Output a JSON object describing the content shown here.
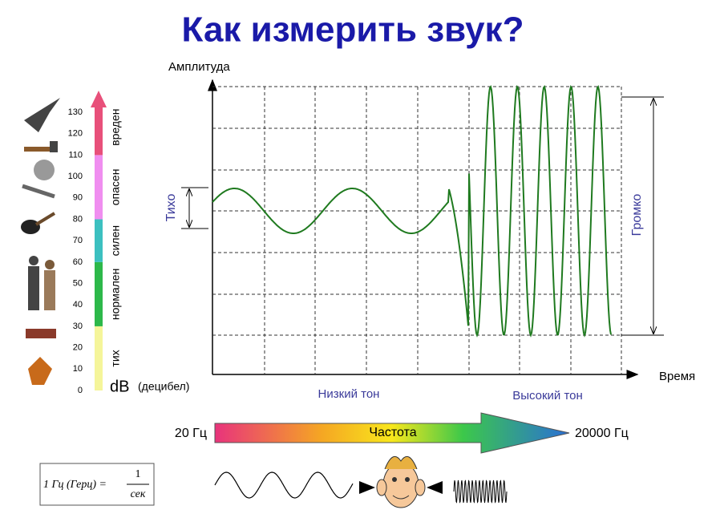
{
  "title": "Как измерить звук?",
  "db_scale": {
    "ticks": [
      0,
      10,
      20,
      30,
      40,
      50,
      60,
      70,
      80,
      90,
      100,
      110,
      120,
      130
    ],
    "bands": [
      "тих",
      "нормален",
      "силен",
      "опасен",
      "вреден"
    ],
    "unit": "dB",
    "unit_note": "(децибел)"
  },
  "graph": {
    "y_label": "Амплитуда",
    "x_label": "Время",
    "quiet": "Тихо",
    "loud": "Громко",
    "low_tone": "Низкий тон",
    "high_tone": "Высокий тон"
  },
  "frequency": {
    "min": "20 Гц",
    "label": "Частота",
    "max": "20000 Гц"
  },
  "formula": {
    "left": "1 Гц (Герц) =",
    "numerator": "1",
    "denominator": "сек"
  }
}
